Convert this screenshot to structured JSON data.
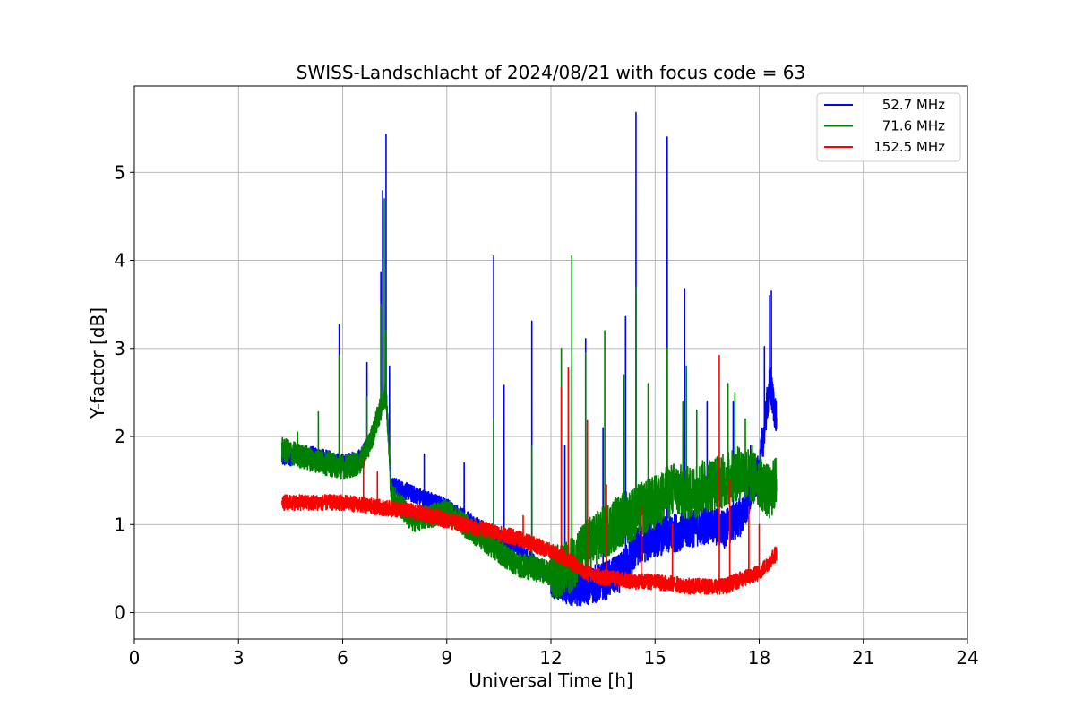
{
  "chart_data": {
    "type": "line",
    "title": "SWISS-Landschlacht of 2024/08/21 with focus code = 63",
    "xlabel": "Universal Time [h]",
    "ylabel": "Y-factor [dB]",
    "xlim": [
      0,
      24
    ],
    "ylim": [
      -0.3,
      5.98
    ],
    "xticks": [
      0,
      3,
      6,
      9,
      12,
      15,
      18,
      21,
      24
    ],
    "yticks": [
      0,
      1,
      2,
      3,
      4,
      5
    ],
    "grid": true,
    "legend_position": "top-right",
    "series": [
      {
        "name": "52.7 MHz",
        "color": "#0000ff",
        "noise_amplitude": 0.1,
        "baseline": [
          [
            4.25,
            1.75
          ],
          [
            5.0,
            1.8
          ],
          [
            5.5,
            1.75
          ],
          [
            6.0,
            1.7
          ],
          [
            6.5,
            1.75
          ],
          [
            6.8,
            1.95
          ],
          [
            7.0,
            2.2
          ],
          [
            7.25,
            2.5
          ],
          [
            7.4,
            1.45
          ],
          [
            8.0,
            1.35
          ],
          [
            9.0,
            1.2
          ],
          [
            10.0,
            0.95
          ],
          [
            11.0,
            0.75
          ],
          [
            12.0,
            0.4
          ],
          [
            12.5,
            0.3
          ],
          [
            13.0,
            0.3
          ],
          [
            13.5,
            0.35
          ],
          [
            14.0,
            0.45
          ],
          [
            14.5,
            0.75
          ],
          [
            15.0,
            0.85
          ],
          [
            15.5,
            0.9
          ],
          [
            16.0,
            0.95
          ],
          [
            16.5,
            1.0
          ],
          [
            17.0,
            0.95
          ],
          [
            17.5,
            1.1
          ],
          [
            18.0,
            1.6
          ],
          [
            18.3,
            2.6
          ],
          [
            18.5,
            2.2
          ]
        ],
        "spikes": [
          [
            4.5,
            1.9
          ],
          [
            5.9,
            3.27
          ],
          [
            6.7,
            2.84
          ],
          [
            7.1,
            3.87
          ],
          [
            7.15,
            4.79
          ],
          [
            7.25,
            5.43
          ],
          [
            7.35,
            2.8
          ],
          [
            8.35,
            1.8
          ],
          [
            9.5,
            1.7
          ],
          [
            10.35,
            4.05
          ],
          [
            10.65,
            2.58
          ],
          [
            11.45,
            3.31
          ],
          [
            12.4,
            1.9
          ],
          [
            12.6,
            2.7
          ],
          [
            13.0,
            3.11
          ],
          [
            13.5,
            2.1
          ],
          [
            14.15,
            3.36
          ],
          [
            14.45,
            5.68
          ],
          [
            15.35,
            5.4
          ],
          [
            15.85,
            3.68
          ],
          [
            16.5,
            2.4
          ],
          [
            17.25,
            2.4
          ],
          [
            17.75,
            1.9
          ],
          [
            18.15,
            3.02
          ],
          [
            18.3,
            3.6
          ],
          [
            18.35,
            3.65
          ],
          [
            18.5,
            2.8
          ]
        ]
      },
      {
        "name": "71.6 MHz",
        "color": "#008000",
        "noise_amplitude": 0.14,
        "baseline": [
          [
            4.25,
            1.85
          ],
          [
            5.0,
            1.75
          ],
          [
            5.5,
            1.7
          ],
          [
            6.0,
            1.65
          ],
          [
            6.5,
            1.7
          ],
          [
            6.8,
            1.95
          ],
          [
            7.0,
            2.2
          ],
          [
            7.25,
            2.5
          ],
          [
            7.4,
            1.35
          ],
          [
            8.0,
            1.05
          ],
          [
            9.0,
            1.15
          ],
          [
            10.0,
            0.85
          ],
          [
            11.0,
            0.55
          ],
          [
            12.0,
            0.45
          ],
          [
            12.5,
            0.5
          ],
          [
            13.0,
            0.75
          ],
          [
            13.5,
            0.9
          ],
          [
            14.0,
            1.05
          ],
          [
            14.5,
            1.15
          ],
          [
            15.0,
            1.25
          ],
          [
            15.5,
            1.4
          ],
          [
            16.0,
            1.35
          ],
          [
            16.5,
            1.45
          ],
          [
            17.0,
            1.5
          ],
          [
            17.5,
            1.6
          ],
          [
            18.0,
            1.5
          ],
          [
            18.3,
            1.35
          ],
          [
            18.5,
            1.5
          ]
        ],
        "spikes": [
          [
            4.7,
            2.05
          ],
          [
            5.3,
            2.28
          ],
          [
            5.9,
            2.92
          ],
          [
            6.7,
            2.45
          ],
          [
            7.1,
            3.5
          ],
          [
            7.2,
            4.7
          ],
          [
            7.25,
            3.2
          ],
          [
            10.35,
            2.2
          ],
          [
            11.45,
            1.9
          ],
          [
            12.3,
            3.0
          ],
          [
            12.6,
            4.05
          ],
          [
            13.0,
            2.95
          ],
          [
            13.55,
            3.2
          ],
          [
            14.1,
            2.7
          ],
          [
            14.45,
            3.7
          ],
          [
            14.8,
            2.6
          ],
          [
            15.35,
            3.0
          ],
          [
            15.8,
            2.4
          ],
          [
            15.9,
            2.8
          ],
          [
            16.2,
            2.3
          ],
          [
            17.1,
            2.6
          ],
          [
            17.3,
            2.5
          ],
          [
            17.6,
            2.2
          ],
          [
            17.8,
            1.9
          ],
          [
            18.5,
            2.5
          ]
        ]
      },
      {
        "name": "152.5 MHz",
        "color": "#ff0000",
        "noise_amplitude": 0.09,
        "baseline": [
          [
            4.25,
            1.25
          ],
          [
            5.0,
            1.25
          ],
          [
            6.0,
            1.25
          ],
          [
            7.0,
            1.2
          ],
          [
            8.0,
            1.15
          ],
          [
            9.0,
            1.05
          ],
          [
            10.0,
            0.95
          ],
          [
            11.0,
            0.85
          ],
          [
            12.0,
            0.7
          ],
          [
            12.5,
            0.6
          ],
          [
            13.0,
            0.45
          ],
          [
            13.5,
            0.4
          ],
          [
            14.0,
            0.38
          ],
          [
            14.5,
            0.35
          ],
          [
            15.0,
            0.35
          ],
          [
            16.0,
            0.3
          ],
          [
            17.0,
            0.3
          ],
          [
            17.5,
            0.38
          ],
          [
            18.0,
            0.45
          ],
          [
            18.3,
            0.58
          ],
          [
            18.5,
            0.68
          ]
        ],
        "spikes": [
          [
            6.6,
            1.75
          ],
          [
            7.0,
            1.6
          ],
          [
            11.2,
            1.1
          ],
          [
            12.3,
            2.56
          ],
          [
            12.5,
            2.78
          ],
          [
            13.05,
            2.18
          ],
          [
            13.6,
            1.45
          ],
          [
            14.6,
            1.2
          ],
          [
            15.5,
            1.0
          ],
          [
            16.85,
            2.92
          ],
          [
            17.15,
            1.5
          ],
          [
            17.7,
            1.2
          ],
          [
            18.0,
            1.0
          ]
        ]
      }
    ]
  }
}
